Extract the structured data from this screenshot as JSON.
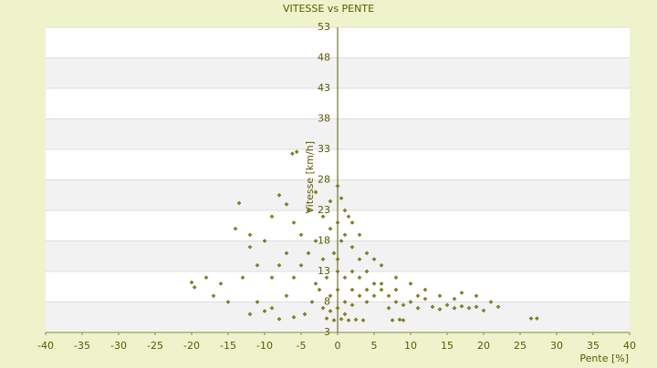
{
  "chart_data": {
    "type": "scatter",
    "title": "VITESSE vs PENTE",
    "x_label": "Pente [%]",
    "y_label": "Vitesse [km/h]",
    "xlim": [
      -40,
      40
    ],
    "ylim": [
      3,
      53
    ],
    "xticks": [
      -40,
      -35,
      -30,
      -25,
      -20,
      -15,
      -10,
      -5,
      0,
      5,
      10,
      15,
      20,
      25,
      30,
      35,
      40
    ],
    "yticks": [
      3,
      8,
      13,
      18,
      23,
      28,
      33,
      38,
      43,
      48,
      53
    ],
    "grid": true,
    "color": "#8a8a10",
    "x": [
      -6.2,
      -5.6,
      -20,
      -19.6,
      26.5,
      27.3,
      -13.5,
      -14,
      -12,
      -16,
      -15,
      -13,
      -10,
      -9,
      -8,
      -7,
      -6,
      -5,
      -4,
      -3,
      -2,
      -1,
      0,
      0.5,
      1,
      -11,
      -10,
      -9,
      -7,
      -6,
      -5,
      -4,
      -3,
      -2,
      -1,
      0,
      1,
      2,
      3,
      4,
      5,
      6,
      7,
      8,
      9,
      10,
      11,
      12,
      13,
      14,
      15,
      16,
      17,
      18,
      19,
      20,
      21,
      22,
      19,
      16,
      12,
      10,
      8,
      6,
      4,
      3,
      2,
      1.5,
      0.5,
      -0.5,
      -1.5,
      -2.5,
      -3.5,
      -4.5,
      -0.5,
      0.5,
      1.5,
      2.5,
      3.5,
      -1.5,
      7.5,
      8.5,
      9,
      -6,
      -8,
      -12,
      0,
      0,
      0,
      1,
      2,
      3,
      4,
      5,
      -1,
      -2,
      -3,
      1,
      2,
      3,
      5,
      6,
      7,
      0,
      1,
      -1,
      2,
      4,
      8,
      11,
      14,
      17,
      -8,
      -7,
      -9,
      -11,
      -12,
      -17,
      -18
    ],
    "y": [
      32.3,
      32.6,
      11.2,
      10.4,
      5.3,
      5.3,
      24.2,
      20,
      17,
      11,
      8,
      12,
      18,
      22,
      25.5,
      24,
      21,
      19,
      23,
      26,
      22,
      24.5,
      27,
      25,
      23,
      8,
      6.5,
      7,
      9,
      12,
      14,
      16,
      18,
      15,
      20,
      21,
      19,
      17,
      15,
      13,
      11,
      10,
      9,
      8,
      7.5,
      8,
      7,
      8.5,
      7.2,
      6.8,
      7.5,
      7,
      7.3,
      7,
      7.2,
      6.6,
      8,
      7.2,
      9,
      8.5,
      10,
      11,
      12,
      14,
      16,
      19,
      21,
      22,
      18,
      16,
      12,
      10,
      8,
      6,
      5,
      5.2,
      5,
      5.1,
      5,
      5.3,
      5,
      5.1,
      5,
      5.5,
      5.2,
      6,
      10,
      13,
      15,
      12,
      10,
      9,
      8,
      9,
      9,
      7,
      11,
      8,
      13,
      12,
      15,
      11,
      7,
      7,
      6,
      6.5,
      7.5,
      10,
      10,
      9,
      9,
      9.5,
      14,
      16,
      12,
      14,
      19,
      9,
      12
    ]
  }
}
